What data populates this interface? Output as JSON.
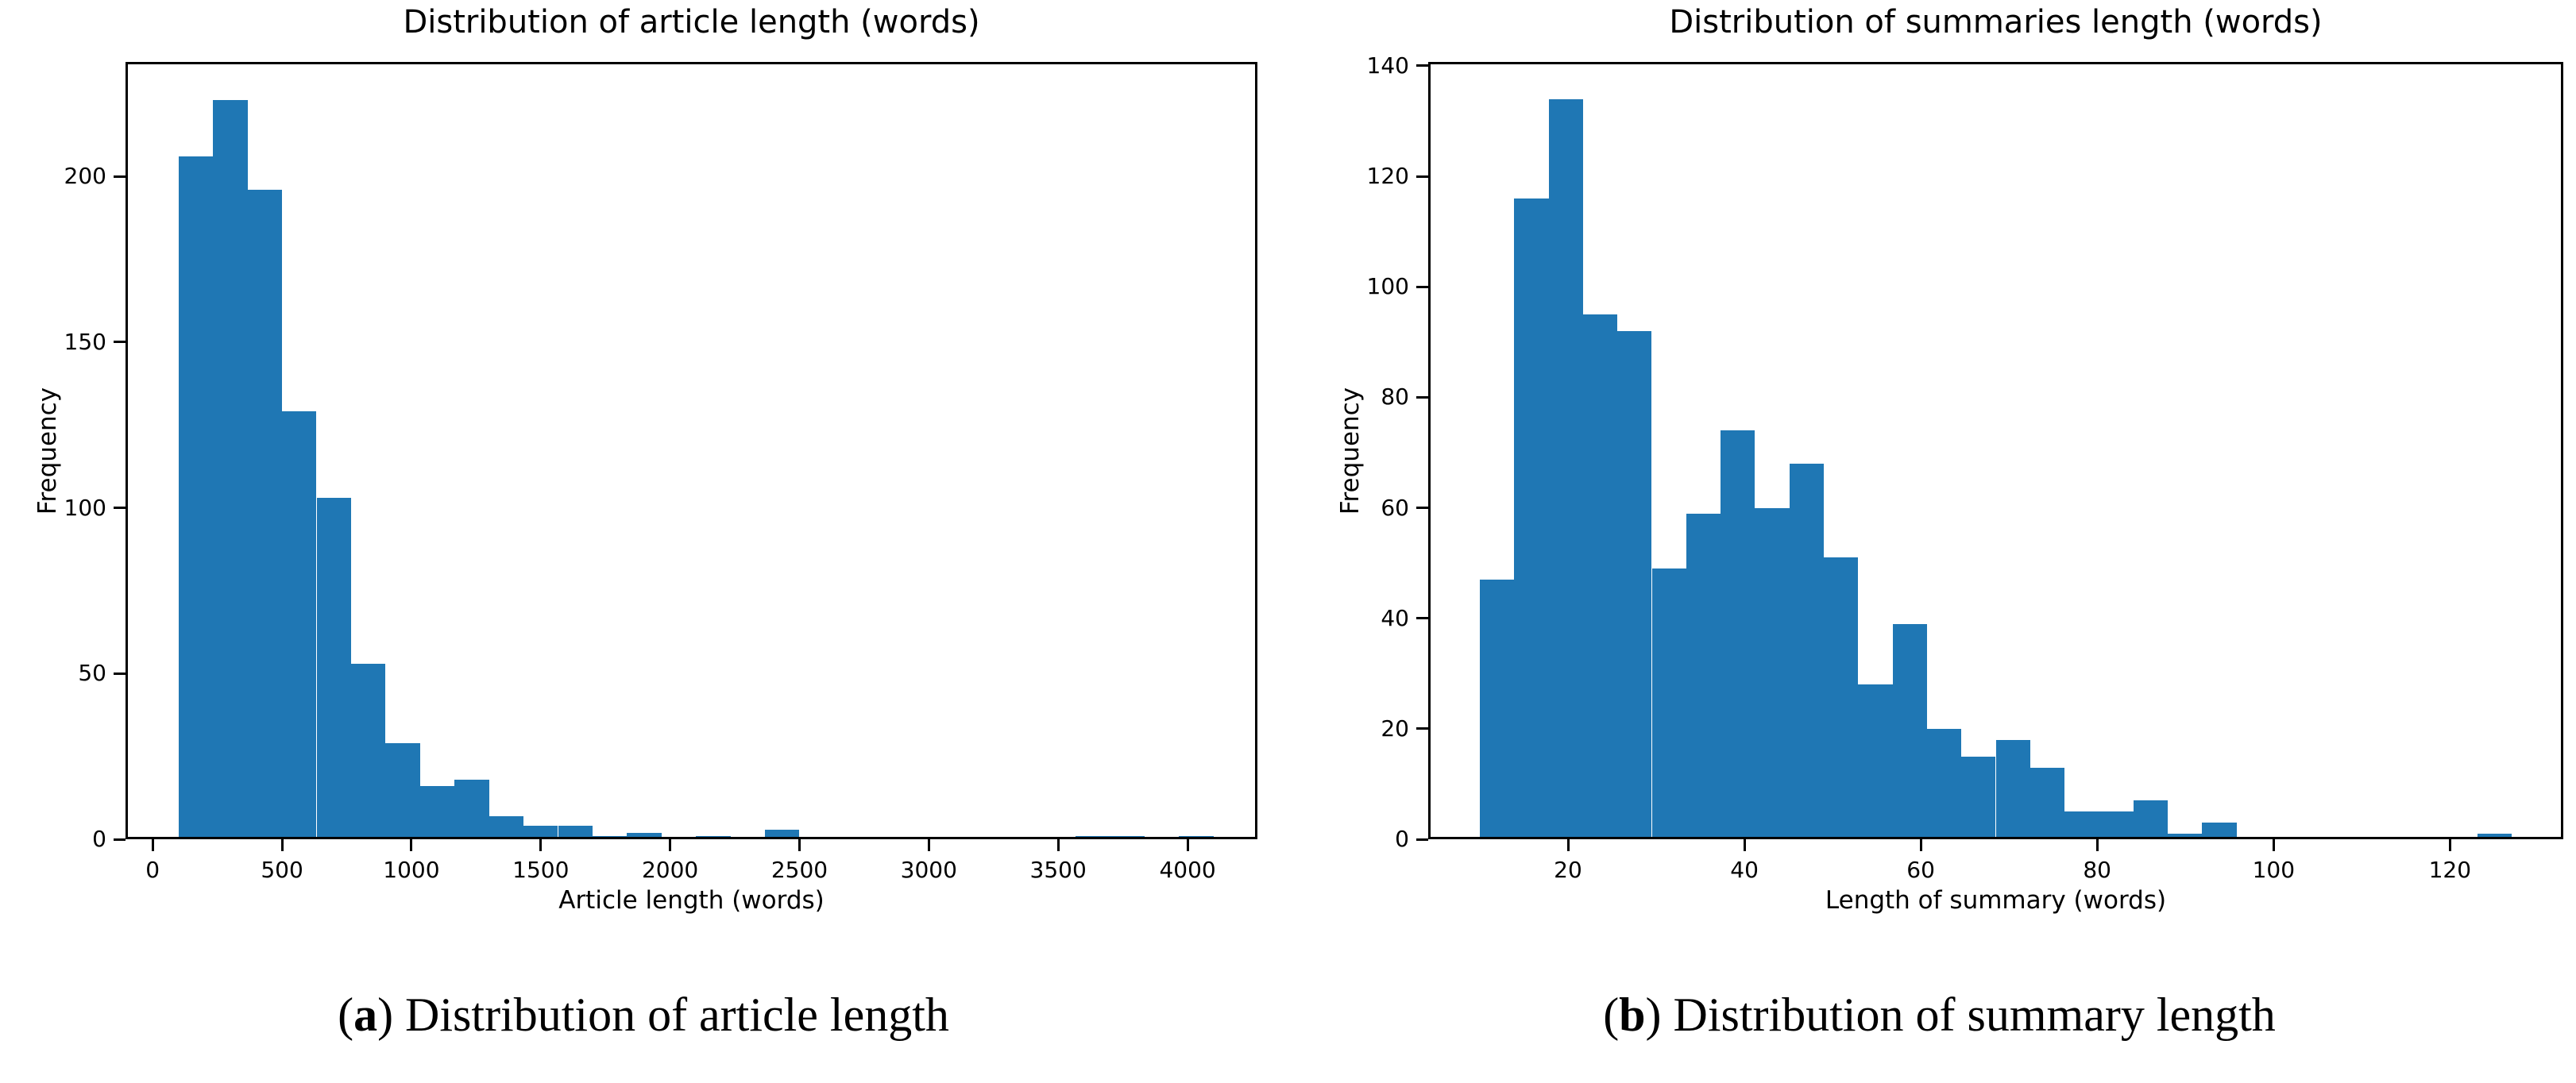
{
  "figure": {
    "background": "#ffffff",
    "bar_color": "#1f77b4",
    "axis_color": "#000000",
    "text_color": "#000000"
  },
  "chart_data": [
    {
      "type": "histogram",
      "title": "Distribution of article length (words)",
      "xlabel": "Article length (words)",
      "ylabel": "Frequency",
      "bins": {
        "start": 100,
        "width": 133.33,
        "count": 30
      },
      "values": [
        206,
        223,
        196,
        129,
        103,
        53,
        29,
        16,
        18,
        7,
        4,
        4,
        1,
        2,
        0,
        1,
        0,
        3,
        0,
        0,
        0,
        0,
        0,
        0,
        0,
        0,
        1,
        1,
        0,
        1
      ],
      "xticks": [
        0,
        500,
        1000,
        1500,
        2000,
        2500,
        3000,
        3500,
        4000
      ],
      "yticks": [
        0,
        50,
        100,
        150,
        200
      ],
      "xlim": [
        -105,
        4270
      ],
      "ylim": [
        0,
        234.5
      ],
      "grid": false,
      "legend": null
    },
    {
      "type": "histogram",
      "title": "Distribution of summaries length (words)",
      "xlabel": "Length of summary (words)",
      "ylabel": "Frequency",
      "bins": {
        "start": 10,
        "width": 3.9,
        "count": 30
      },
      "values": [
        47,
        116,
        134,
        95,
        92,
        49,
        59,
        74,
        60,
        68,
        51,
        28,
        39,
        20,
        15,
        18,
        13,
        5,
        5,
        7,
        1,
        3,
        0,
        0,
        0,
        0,
        0,
        0,
        0,
        1
      ],
      "xticks": [
        20,
        40,
        60,
        80,
        100,
        120
      ],
      "yticks": [
        0,
        20,
        40,
        60,
        80,
        100,
        120,
        140
      ],
      "xlim": [
        4.15,
        132.85
      ],
      "ylim": [
        0,
        140.7
      ],
      "grid": false,
      "legend": null
    }
  ],
  "captions": [
    {
      "prefix": "(",
      "marker": "a",
      "suffix": ") Distribution of article length"
    },
    {
      "prefix": "(",
      "marker": "b",
      "suffix": ") Distribution of summary length"
    }
  ]
}
